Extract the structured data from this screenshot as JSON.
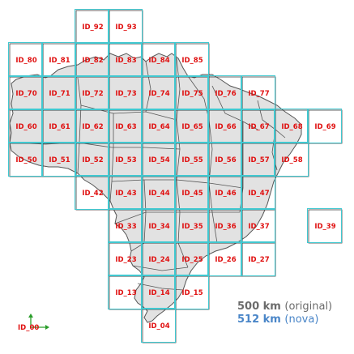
{
  "colors": {
    "label": "#e01010",
    "grid_original": "#404040",
    "grid_new": "#40c8d0",
    "land": "#e2e2e2",
    "border": "#555555",
    "legend_original": "#6b6b6b",
    "legend_new": "#4a86c8",
    "axis_arrow": "#2a9d2a"
  },
  "grid": {
    "cells": [
      {
        "id": "ID_92",
        "col": 2,
        "row": -2
      },
      {
        "id": "ID_93",
        "col": 3,
        "row": -2
      },
      {
        "id": "ID_80",
        "col": 0,
        "row": -1
      },
      {
        "id": "ID_81",
        "col": 1,
        "row": -1
      },
      {
        "id": "ID_82",
        "col": 2,
        "row": -1
      },
      {
        "id": "ID_83",
        "col": 3,
        "row": -1
      },
      {
        "id": "ID_84",
        "col": 4,
        "row": -1
      },
      {
        "id": "ID_85",
        "col": 5,
        "row": -1
      },
      {
        "id": "ID_70",
        "col": 0,
        "row": 0
      },
      {
        "id": "ID_71",
        "col": 1,
        "row": 0
      },
      {
        "id": "ID_72",
        "col": 2,
        "row": 0
      },
      {
        "id": "ID_73",
        "col": 3,
        "row": 0
      },
      {
        "id": "ID_74",
        "col": 4,
        "row": 0
      },
      {
        "id": "ID_75",
        "col": 5,
        "row": 0
      },
      {
        "id": "ID_76",
        "col": 6,
        "row": 0
      },
      {
        "id": "ID_77",
        "col": 7,
        "row": 0
      },
      {
        "id": "ID_60",
        "col": 0,
        "row": 1
      },
      {
        "id": "ID_61",
        "col": 1,
        "row": 1
      },
      {
        "id": "ID_62",
        "col": 2,
        "row": 1
      },
      {
        "id": "ID_63",
        "col": 3,
        "row": 1
      },
      {
        "id": "ID_64",
        "col": 4,
        "row": 1
      },
      {
        "id": "ID_65",
        "col": 5,
        "row": 1
      },
      {
        "id": "ID_66",
        "col": 6,
        "row": 1
      },
      {
        "id": "ID_67",
        "col": 7,
        "row": 1
      },
      {
        "id": "ID_68",
        "col": 8,
        "row": 1
      },
      {
        "id": "ID_69",
        "col": 9,
        "row": 1
      },
      {
        "id": "ID_50",
        "col": 0,
        "row": 2
      },
      {
        "id": "ID_51",
        "col": 1,
        "row": 2
      },
      {
        "id": "ID_52",
        "col": 2,
        "row": 2
      },
      {
        "id": "ID_53",
        "col": 3,
        "row": 2
      },
      {
        "id": "ID_54",
        "col": 4,
        "row": 2
      },
      {
        "id": "ID_55",
        "col": 5,
        "row": 2
      },
      {
        "id": "ID_56",
        "col": 6,
        "row": 2
      },
      {
        "id": "ID_57",
        "col": 7,
        "row": 2
      },
      {
        "id": "ID_58",
        "col": 8,
        "row": 2
      },
      {
        "id": "ID_42",
        "col": 2,
        "row": 3
      },
      {
        "id": "ID_43",
        "col": 3,
        "row": 3
      },
      {
        "id": "ID_44",
        "col": 4,
        "row": 3
      },
      {
        "id": "ID_45",
        "col": 5,
        "row": 3
      },
      {
        "id": "ID_46",
        "col": 6,
        "row": 3
      },
      {
        "id": "ID_47",
        "col": 7,
        "row": 3
      },
      {
        "id": "ID_33",
        "col": 3,
        "row": 4
      },
      {
        "id": "ID_34",
        "col": 4,
        "row": 4
      },
      {
        "id": "ID_35",
        "col": 5,
        "row": 4
      },
      {
        "id": "ID_36",
        "col": 6,
        "row": 4
      },
      {
        "id": "ID_37",
        "col": 7,
        "row": 4
      },
      {
        "id": "ID_39",
        "col": 9,
        "row": 4
      },
      {
        "id": "ID_23",
        "col": 3,
        "row": 5
      },
      {
        "id": "ID_24",
        "col": 4,
        "row": 5
      },
      {
        "id": "ID_25",
        "col": 5,
        "row": 5
      },
      {
        "id": "ID_26",
        "col": 6,
        "row": 5
      },
      {
        "id": "ID_27",
        "col": 7,
        "row": 5
      },
      {
        "id": "ID_13",
        "col": 3,
        "row": 6
      },
      {
        "id": "ID_14",
        "col": 4,
        "row": 6
      },
      {
        "id": "ID_15",
        "col": 5,
        "row": 6
      },
      {
        "id": "ID_04",
        "col": 4,
        "row": 7
      }
    ]
  },
  "origin": {
    "label": "ID_00"
  },
  "legend": {
    "original": {
      "value": "500 km",
      "note": "(original)"
    },
    "nova": {
      "value": "512 km",
      "note": "(nova)"
    }
  }
}
